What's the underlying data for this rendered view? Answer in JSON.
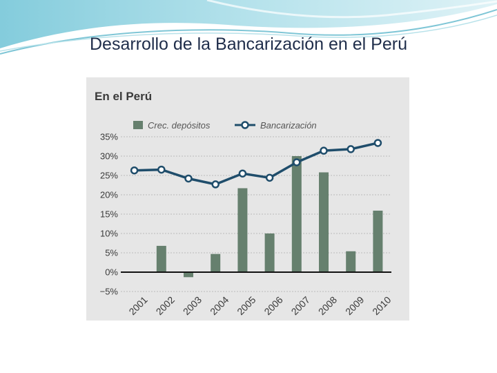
{
  "slide": {
    "title": "Desarrollo de la Bancarización en el Perú"
  },
  "colors": {
    "bar": "#66806e",
    "line": "#1f4d6b",
    "marker_fill": "#ffffff",
    "panel_bg": "#e6e6e6",
    "zero_line": "#111111"
  },
  "chart_data": {
    "type": "bar",
    "title": "En el Perú",
    "categories": [
      "2001",
      "2002",
      "2003",
      "2004",
      "2005",
      "2006",
      "2007",
      "2008",
      "2009",
      "2010"
    ],
    "series": [
      {
        "name": "Crec. depósitos",
        "type": "bar",
        "values": [
          0,
          6.8,
          -1.3,
          4.7,
          21.7,
          10.0,
          30.0,
          25.8,
          5.4,
          15.9
        ]
      },
      {
        "name": "Bancarización",
        "type": "line",
        "values": [
          26.3,
          26.5,
          24.2,
          22.7,
          25.5,
          24.4,
          28.4,
          31.4,
          31.8,
          33.4
        ]
      }
    ],
    "ylim": [
      -5,
      35
    ],
    "yticks": [
      35,
      30,
      25,
      20,
      15,
      10,
      5,
      0,
      -5
    ],
    "ytick_labels": [
      "35%",
      "30%",
      "25%",
      "20%",
      "15%",
      "10%",
      "5%",
      "0%",
      "−5%"
    ],
    "grid": true,
    "legend_position": "top"
  }
}
